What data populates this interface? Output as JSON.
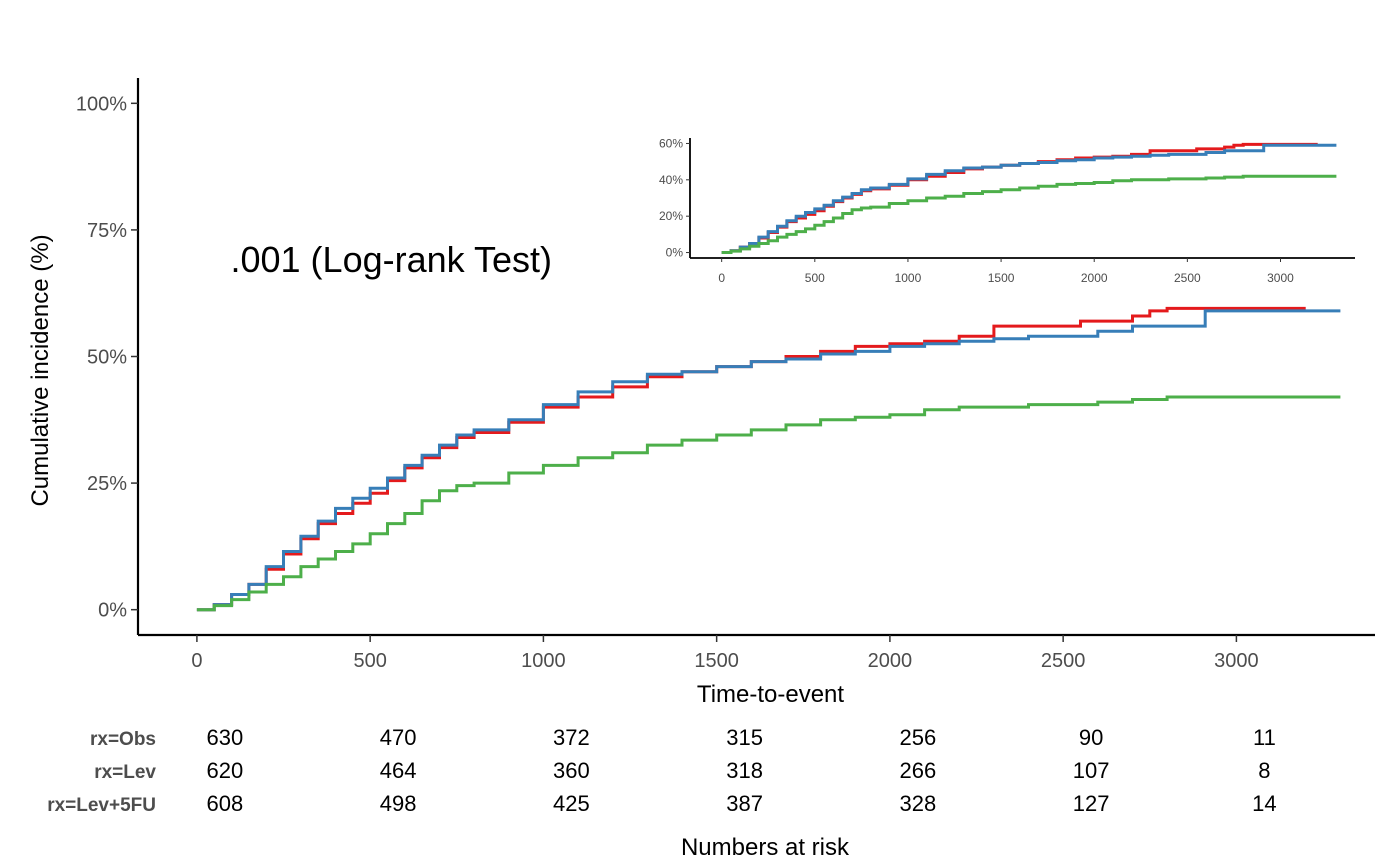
{
  "chart_data": [
    {
      "type": "line",
      "panel": "main",
      "xlabel": "Time-to-event",
      "ylabel": "Cumulative incidence (%)",
      "xlim": [
        -170,
        3400
      ],
      "ylim": [
        -0.05,
        1.05
      ],
      "xticks": [
        0,
        500,
        1000,
        1500,
        2000,
        2500,
        3000
      ],
      "xtick_labels": [
        "0",
        "500",
        "1000",
        "1500",
        "2000",
        "2500",
        "3000"
      ],
      "yticks": [
        0,
        0.25,
        0.5,
        0.75,
        1.0
      ],
      "ytick_labels": [
        "0%",
        "25%",
        "50%",
        "75%",
        "100%"
      ],
      "annotation": ".001 (Log-rank Test)",
      "grid": false,
      "legend": "none",
      "series": [
        {
          "color": "#e41a1c",
          "x": [
            0,
            50,
            100,
            150,
            200,
            250,
            300,
            350,
            400,
            450,
            500,
            550,
            600,
            650,
            700,
            750,
            800,
            900,
            1000,
            1100,
            1200,
            1300,
            1400,
            1500,
            1600,
            1700,
            1800,
            1900,
            2000,
            2100,
            2200,
            2300,
            2400,
            2500,
            2550,
            2600,
            2700,
            2750,
            2800,
            2900,
            3000,
            3100,
            3200
          ],
          "y": [
            0,
            0.01,
            0.03,
            0.05,
            0.08,
            0.11,
            0.14,
            0.17,
            0.19,
            0.21,
            0.23,
            0.255,
            0.28,
            0.3,
            0.32,
            0.34,
            0.35,
            0.37,
            0.4,
            0.42,
            0.44,
            0.46,
            0.47,
            0.48,
            0.49,
            0.5,
            0.51,
            0.52,
            0.525,
            0.53,
            0.54,
            0.56,
            0.56,
            0.56,
            0.57,
            0.57,
            0.58,
            0.59,
            0.595,
            0.595,
            0.595,
            0.595,
            0.595
          ]
        },
        {
          "color": "#377eb8",
          "x": [
            0,
            50,
            100,
            150,
            200,
            250,
            300,
            350,
            400,
            450,
            500,
            550,
            600,
            650,
            700,
            750,
            800,
            900,
            1000,
            1100,
            1200,
            1300,
            1400,
            1500,
            1600,
            1700,
            1800,
            1900,
            2000,
            2100,
            2200,
            2300,
            2400,
            2500,
            2600,
            2700,
            2800,
            2900,
            2910,
            3000,
            3100,
            3200,
            3300
          ],
          "y": [
            0,
            0.01,
            0.03,
            0.05,
            0.085,
            0.115,
            0.145,
            0.175,
            0.2,
            0.22,
            0.24,
            0.26,
            0.285,
            0.305,
            0.325,
            0.345,
            0.355,
            0.375,
            0.405,
            0.43,
            0.45,
            0.465,
            0.47,
            0.48,
            0.49,
            0.495,
            0.505,
            0.51,
            0.52,
            0.525,
            0.53,
            0.535,
            0.54,
            0.54,
            0.55,
            0.56,
            0.56,
            0.56,
            0.59,
            0.59,
            0.59,
            0.59,
            0.59
          ]
        },
        {
          "color": "#4daf4a",
          "x": [
            0,
            50,
            100,
            150,
            200,
            250,
            300,
            350,
            400,
            450,
            500,
            550,
            600,
            650,
            700,
            750,
            800,
            900,
            1000,
            1100,
            1200,
            1300,
            1400,
            1500,
            1600,
            1700,
            1800,
            1900,
            2000,
            2100,
            2200,
            2300,
            2400,
            2500,
            2600,
            2700,
            2800,
            2900,
            3000,
            3100,
            3200,
            3300
          ],
          "y": [
            0,
            0.008,
            0.02,
            0.035,
            0.05,
            0.065,
            0.085,
            0.1,
            0.115,
            0.13,
            0.15,
            0.17,
            0.19,
            0.215,
            0.235,
            0.245,
            0.25,
            0.27,
            0.285,
            0.3,
            0.31,
            0.325,
            0.335,
            0.345,
            0.355,
            0.365,
            0.375,
            0.38,
            0.385,
            0.395,
            0.4,
            0.4,
            0.405,
            0.405,
            0.41,
            0.415,
            0.42,
            0.42,
            0.42,
            0.42,
            0.42,
            0.42
          ]
        }
      ]
    },
    {
      "type": "line",
      "panel": "inset",
      "xlabel": "",
      "ylabel": "",
      "xlim": [
        -170,
        3400
      ],
      "ylim": [
        -0.03,
        0.63
      ],
      "xticks": [
        0,
        500,
        1000,
        1500,
        2000,
        2500,
        3000
      ],
      "xtick_labels": [
        "0",
        "500",
        "1000",
        "1500",
        "2000",
        "2500",
        "3000"
      ],
      "yticks": [
        0,
        0.2,
        0.4,
        0.6
      ],
      "ytick_labels": [
        "0%",
        "20%",
        "40%",
        "60%"
      ],
      "grid": false,
      "legend": "none"
    }
  ],
  "risk_table": {
    "title": "Numbers at risk",
    "times": [
      0,
      500,
      1000,
      1500,
      2000,
      2500,
      3000
    ],
    "rows": [
      {
        "label": "rx=Obs",
        "values": [
          "630",
          "470",
          "372",
          "315",
          "256",
          "90",
          "11"
        ]
      },
      {
        "label": "rx=Lev",
        "values": [
          "620",
          "464",
          "360",
          "318",
          "266",
          "107",
          "8"
        ]
      },
      {
        "label": "rx=Lev+5FU",
        "values": [
          "608",
          "498",
          "425",
          "387",
          "328",
          "127",
          "14"
        ]
      }
    ]
  }
}
